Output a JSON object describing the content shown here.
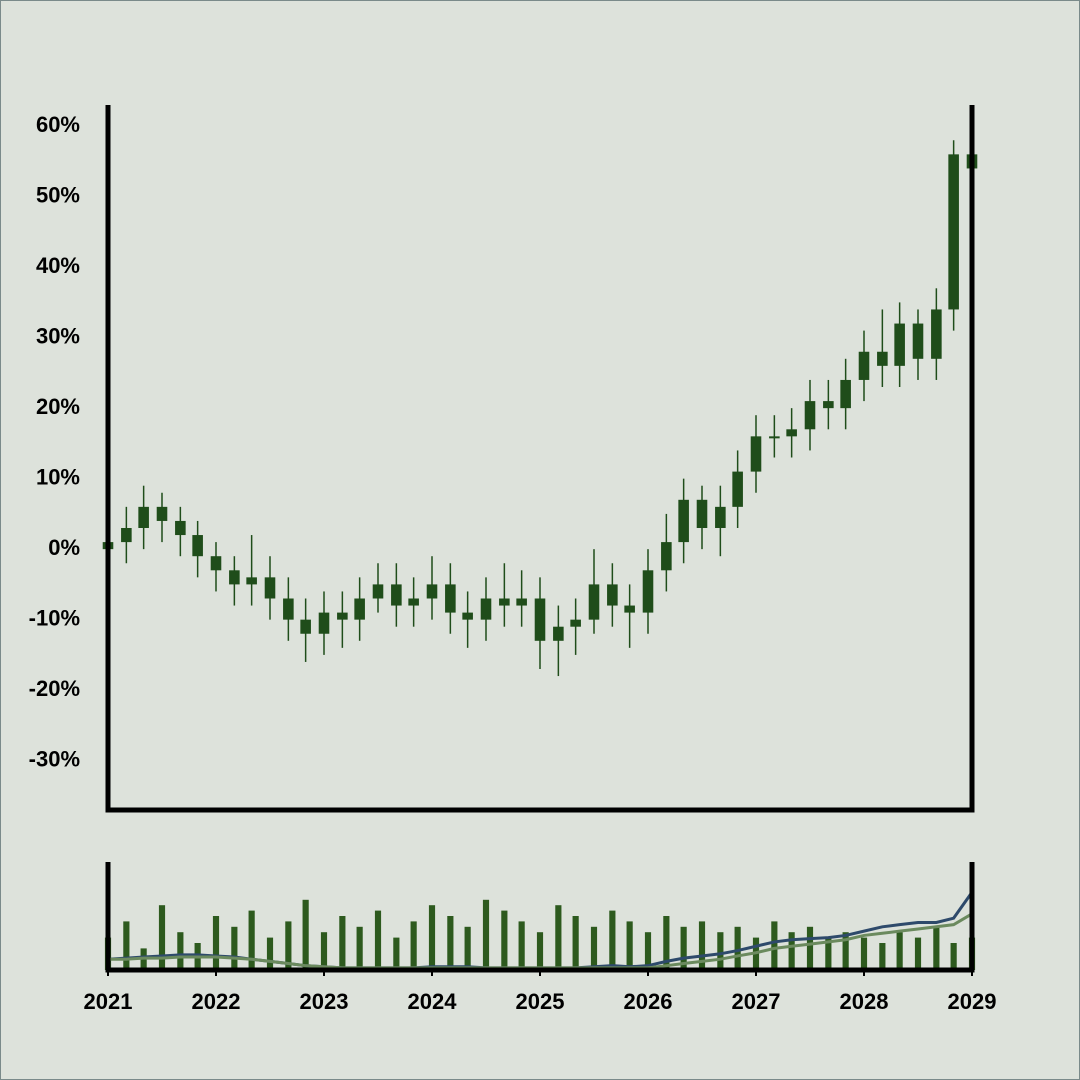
{
  "chart_data": [
    {
      "type": "candlestick",
      "x": [
        2021,
        2021.17,
        2021.33,
        2021.5,
        2021.67,
        2021.83,
        2022,
        2022.17,
        2022.33,
        2022.5,
        2022.67,
        2022.83,
        2023,
        2023.17,
        2023.33,
        2023.5,
        2023.67,
        2023.83,
        2024,
        2024.17,
        2024.33,
        2024.5,
        2024.67,
        2024.83,
        2025,
        2025.17,
        2025.33,
        2025.5,
        2025.67,
        2025.83,
        2026,
        2026.17,
        2026.33,
        2026.5,
        2026.67,
        2026.83,
        2027,
        2027.17,
        2027.33,
        2027.5,
        2027.67,
        2027.83,
        2028,
        2028.17,
        2028.33,
        2028.5,
        2028.67,
        2028.83,
        2029
      ],
      "open": [
        0,
        1,
        3,
        6,
        4,
        2,
        -1,
        -3,
        -5,
        -4,
        -7,
        -10,
        -12,
        -9,
        -10,
        -7,
        -5,
        -8,
        -7,
        -5,
        -9,
        -10,
        -7,
        -8,
        -7,
        -13,
        -11,
        -10,
        -5,
        -8,
        -9,
        -3,
        1,
        7,
        3,
        6,
        11,
        16,
        16,
        17,
        21,
        20,
        24,
        28,
        26,
        32,
        27,
        34,
        56
      ],
      "high": [
        4,
        6,
        9,
        8,
        6,
        4,
        1,
        -1,
        2,
        -1,
        -4,
        -7,
        -6,
        -6,
        -4,
        -2,
        -2,
        -4,
        -1,
        -2,
        -6,
        -4,
        -2,
        -3,
        -4,
        -8,
        -7,
        0,
        -2,
        -5,
        0,
        5,
        10,
        9,
        9,
        14,
        19,
        19,
        20,
        24,
        24,
        27,
        31,
        34,
        35,
        34,
        37,
        58,
        59
      ],
      "low": [
        -3,
        -2,
        0,
        1,
        -1,
        -4,
        -6,
        -8,
        -8,
        -10,
        -13,
        -16,
        -15,
        -14,
        -13,
        -9,
        -11,
        -11,
        -10,
        -12,
        -14,
        -13,
        -11,
        -11,
        -17,
        -18,
        -15,
        -12,
        -11,
        -14,
        -12,
        -6,
        -2,
        0,
        -1,
        3,
        8,
        13,
        13,
        14,
        17,
        17,
        21,
        23,
        23,
        24,
        24,
        31,
        52
      ],
      "close": [
        1,
        3,
        6,
        4,
        2,
        -1,
        -3,
        -5,
        -4,
        -7,
        -10,
        -12,
        -9,
        -10,
        -7,
        -5,
        -8,
        -7,
        -5,
        -9,
        -10,
        -7,
        -8,
        -7,
        -13,
        -11,
        -10,
        -5,
        -8,
        -9,
        -3,
        1,
        7,
        3,
        6,
        11,
        16,
        16,
        17,
        21,
        20,
        24,
        28,
        26,
        32,
        27,
        34,
        56,
        54
      ],
      "color": "#1f4d1a",
      "xlim": [
        2021,
        2029
      ],
      "ylim": [
        -37,
        63
      ],
      "yticks": [
        {
          "value": -30,
          "label": "-30%"
        },
        {
          "value": -20,
          "label": "-20%"
        },
        {
          "value": -10,
          "label": "-10%"
        },
        {
          "value": 0,
          "label": "0%"
        },
        {
          "value": 10,
          "label": "10%"
        },
        {
          "value": 20,
          "label": "20%"
        },
        {
          "value": 30,
          "label": "30%"
        },
        {
          "value": 40,
          "label": "40%"
        },
        {
          "value": 50,
          "label": "50%"
        },
        {
          "value": 60,
          "label": "60%"
        }
      ]
    },
    {
      "type": "bar",
      "x": [
        2021,
        2021.17,
        2021.33,
        2021.5,
        2021.67,
        2021.83,
        2022,
        2022.17,
        2022.33,
        2022.5,
        2022.67,
        2022.83,
        2023,
        2023.17,
        2023.33,
        2023.5,
        2023.67,
        2023.83,
        2024,
        2024.17,
        2024.33,
        2024.5,
        2024.67,
        2024.83,
        2025,
        2025.17,
        2025.33,
        2025.5,
        2025.67,
        2025.83,
        2026,
        2026.17,
        2026.33,
        2026.5,
        2026.67,
        2026.83,
        2027,
        2027.17,
        2027.33,
        2027.5,
        2027.67,
        2027.83,
        2028,
        2028.17,
        2028.33,
        2028.5,
        2028.67,
        2028.83,
        2029
      ],
      "values": [
        30,
        45,
        20,
        60,
        35,
        25,
        50,
        40,
        55,
        30,
        45,
        65,
        35,
        50,
        40,
        55,
        30,
        45,
        60,
        50,
        40,
        65,
        55,
        45,
        35,
        60,
        50,
        40,
        55,
        45,
        35,
        50,
        40,
        45,
        35,
        40,
        30,
        45,
        35,
        40,
        30,
        35,
        30,
        25,
        35,
        30,
        40,
        25,
        30
      ],
      "color": "#2d5a1e",
      "lines": [
        {
          "color": "#2e4a6b",
          "values": [
            10,
            11,
            12,
            13,
            14,
            14,
            13,
            12,
            10,
            8,
            6,
            4,
            3,
            2,
            2,
            2,
            2,
            2,
            3,
            3,
            3,
            2,
            2,
            2,
            2,
            2,
            2,
            3,
            4,
            3,
            4,
            8,
            11,
            13,
            15,
            18,
            22,
            26,
            28,
            29,
            30,
            32,
            36,
            40,
            42,
            44,
            44,
            48,
            72
          ]
        },
        {
          "color": "#6b8a5e",
          "values": [
            10,
            10,
            11,
            11,
            12,
            12,
            12,
            11,
            10,
            8,
            6,
            4,
            3,
            2,
            2,
            2,
            2,
            2,
            2,
            2,
            2,
            2,
            2,
            2,
            2,
            2,
            2,
            2,
            2,
            2,
            2,
            4,
            6,
            8,
            10,
            13,
            16,
            20,
            22,
            24,
            26,
            28,
            32,
            34,
            36,
            38,
            40,
            42,
            52
          ]
        }
      ],
      "xlim": [
        2021,
        2029
      ],
      "ylim": [
        0,
        100
      ],
      "xticks": [
        2021,
        2022,
        2023,
        2024,
        2025,
        2026,
        2027,
        2028,
        2029
      ]
    }
  ]
}
